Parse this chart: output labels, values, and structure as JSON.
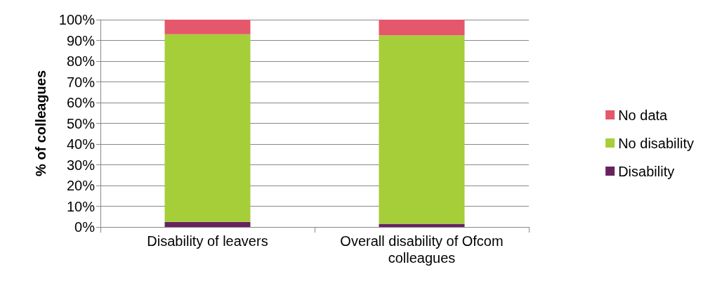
{
  "chart_data": {
    "type": "bar",
    "stacked": true,
    "ylabel": "% of colleagues",
    "categories": [
      "Disability of leavers",
      "Overall disability of Ofcom colleagues"
    ],
    "series": [
      {
        "name": "Disability",
        "color": "#68235f",
        "values": [
          2.5,
          1.5
        ]
      },
      {
        "name": "No disability",
        "color": "#a6ce39",
        "values": [
          90.5,
          91
        ]
      },
      {
        "name": "No data",
        "color": "#e5576a",
        "values": [
          7,
          7.5
        ]
      }
    ],
    "ylim": [
      0,
      100
    ],
    "yticks": [
      {
        "value": 0,
        "label": "0%"
      },
      {
        "value": 10,
        "label": "10%"
      },
      {
        "value": 20,
        "label": "20%"
      },
      {
        "value": 30,
        "label": "30%"
      },
      {
        "value": 40,
        "label": "40%"
      },
      {
        "value": 50,
        "label": "50%"
      },
      {
        "value": 60,
        "label": "60%"
      },
      {
        "value": 70,
        "label": "70%"
      },
      {
        "value": 80,
        "label": "80%"
      },
      {
        "value": 90,
        "label": "90%"
      },
      {
        "value": 100,
        "label": "100%"
      }
    ],
    "grid": "y",
    "legend": "right"
  }
}
